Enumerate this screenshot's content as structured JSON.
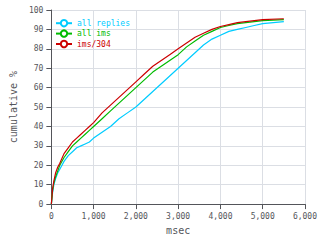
{
  "chart_data": {
    "type": "line",
    "xlabel": "msec",
    "ylabel": "cumulative %",
    "x": [
      0,
      30,
      60,
      100,
      150,
      200,
      300,
      400,
      500,
      600,
      700,
      800,
      900,
      1000,
      1200,
      1400,
      1600,
      1800,
      2000,
      2200,
      2400,
      2600,
      2800,
      3000,
      3200,
      3400,
      3600,
      3800,
      4000,
      4200,
      4400,
      4600,
      4800,
      5000,
      5500
    ],
    "series": [
      {
        "name": "all replies",
        "color": "#00ccff",
        "values": [
          0,
          6,
          10,
          13,
          16,
          18,
          22,
          25,
          27,
          29,
          30,
          31,
          32,
          34,
          37,
          40,
          44,
          47,
          50,
          54,
          58,
          62,
          66,
          70,
          74,
          78,
          82,
          85,
          87,
          89,
          90,
          91,
          92,
          93,
          94
        ]
      },
      {
        "name": "all ims",
        "color": "#00bb00",
        "values": [
          0,
          7,
          11,
          14,
          17,
          20,
          24,
          27,
          30,
          32,
          34,
          36,
          38,
          40,
          44,
          48,
          52,
          56,
          60,
          64,
          68,
          71,
          74,
          77,
          81,
          84,
          87,
          89,
          91,
          92,
          93,
          93.5,
          94,
          94.5,
          95
        ]
      },
      {
        "name": "ims/304",
        "color": "#cc0000",
        "values": [
          0,
          8,
          12,
          16,
          19,
          21,
          26,
          29,
          32,
          34,
          36,
          38,
          40,
          42,
          47,
          51,
          55,
          59,
          63,
          67,
          71,
          74,
          77,
          80,
          83,
          86,
          88,
          90,
          91.5,
          92.5,
          93.5,
          94,
          94.5,
          95,
          95.5
        ]
      }
    ],
    "xlim": [
      0,
      6000
    ],
    "ylim": [
      0,
      100
    ],
    "xticks": [
      0,
      1000,
      2000,
      3000,
      4000,
      5000,
      6000
    ],
    "yticks": [
      0,
      10,
      20,
      30,
      40,
      50,
      60,
      70,
      80,
      90,
      100
    ],
    "grid": true,
    "legend": "upper left"
  }
}
